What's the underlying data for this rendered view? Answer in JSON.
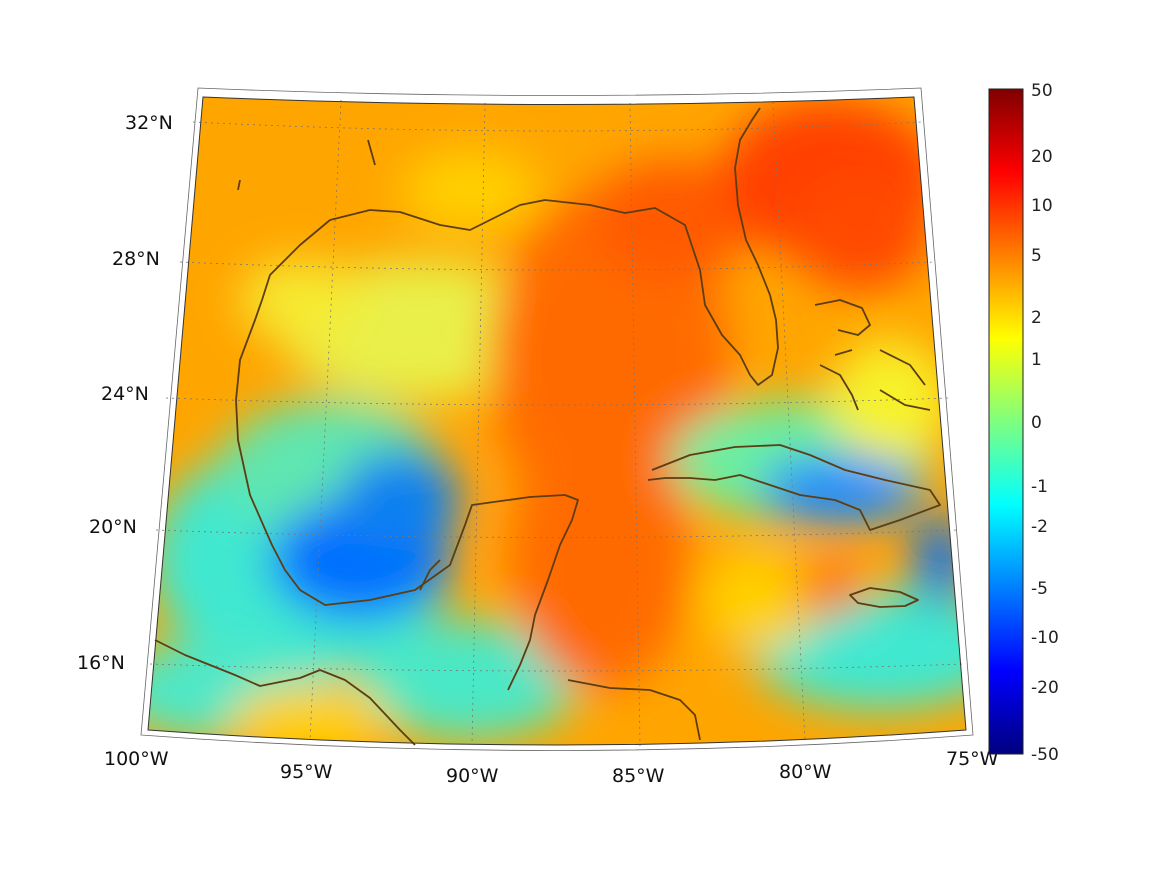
{
  "map": {
    "lat_labels": [
      "32°N",
      "28°N",
      "24°N",
      "20°N",
      "16°N"
    ],
    "lon_labels": [
      "100°W",
      "95°W",
      "90°W",
      "85°W",
      "80°W",
      "75°W"
    ],
    "extent": {
      "lon_min": -100,
      "lon_max": -75,
      "lat_min": 14,
      "lat_max": 33
    },
    "coast_color": "#5c3d14",
    "graticule_color": "#777777"
  },
  "colorbar": {
    "tick_labels": [
      "50",
      "20",
      "10",
      "5",
      "2",
      "1",
      "0",
      "-1",
      "-2",
      "-5",
      "-10",
      "-20",
      "-50"
    ],
    "colormap": "jet",
    "colormap_stops": [
      "#00007f",
      "#0000ff",
      "#007fff",
      "#00ffff",
      "#7fff7f",
      "#ffff00",
      "#ff7f00",
      "#ff0000",
      "#7f0000"
    ]
  }
}
